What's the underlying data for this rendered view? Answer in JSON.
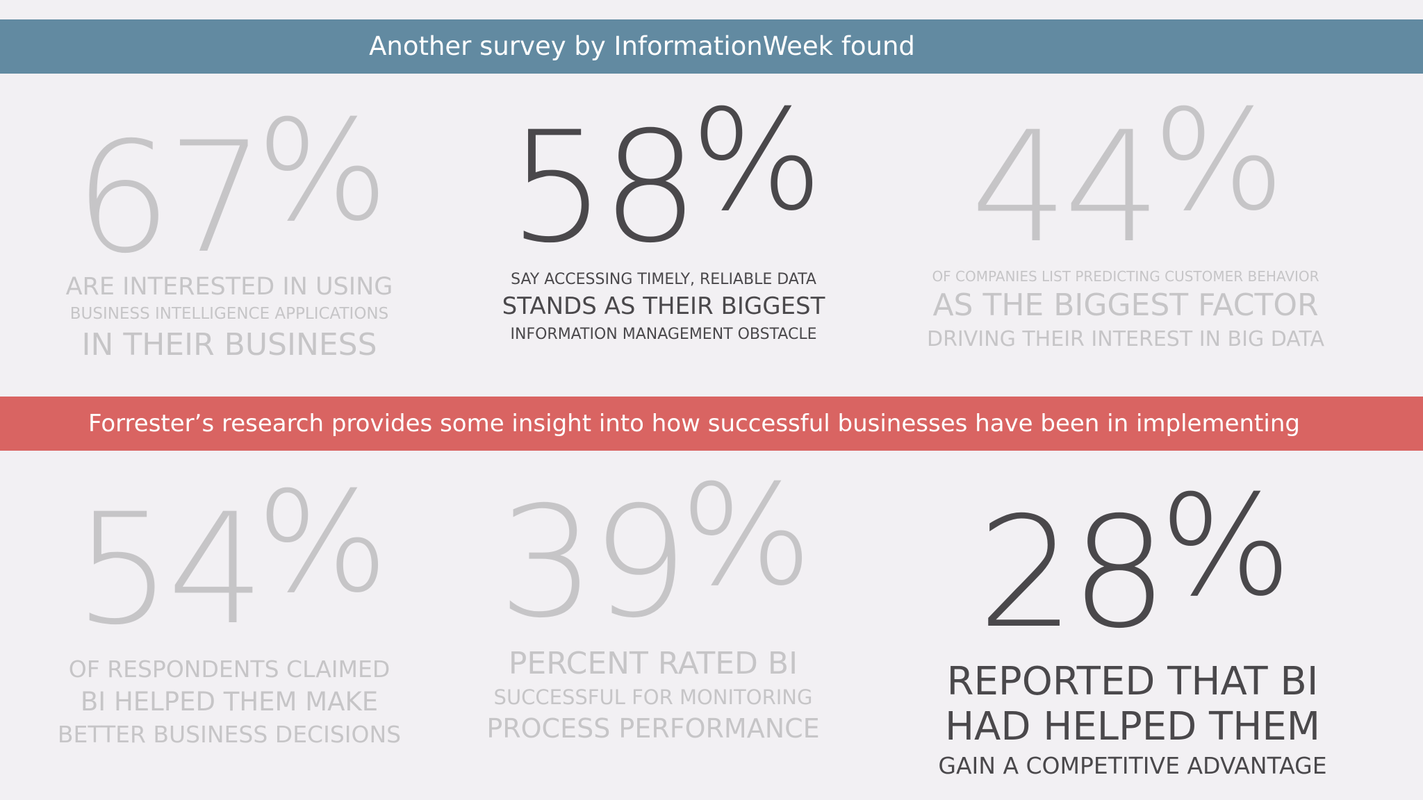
{
  "banners": {
    "top": "Another survey by InformationWeek found",
    "middle": "Forrester’s research provides some insight into how successful businesses have been in implementing"
  },
  "colors": {
    "top_banner": "#628aa1",
    "middle_banner": "#d96462",
    "background": "#f2f0f3",
    "faded_text": "#c6c5c7",
    "dark_text": "#4a484b"
  },
  "stats": [
    {
      "digits": "67",
      "percent": "%",
      "lines": [
        "ARE INTERESTED IN USING",
        "BUSINESS INTELLIGENCE APPLICATIONS",
        "IN THEIR BUSINESS"
      ],
      "emphasis": "faded"
    },
    {
      "digits": "58",
      "percent": "%",
      "lines": [
        "SAY ACCESSING TIMELY, RELIABLE DATA",
        "STANDS AS THEIR BIGGEST",
        "INFORMATION MANAGEMENT OBSTACLE"
      ],
      "emphasis": "dark"
    },
    {
      "digits": "44",
      "percent": "%",
      "lines": [
        "OF COMPANIES LIST PREDICTING CUSTOMER BEHAVIOR",
        "AS THE BIGGEST FACTOR",
        "DRIVING THEIR INTEREST IN BIG DATA"
      ],
      "emphasis": "faded"
    },
    {
      "digits": "54",
      "percent": "%",
      "lines": [
        "OF RESPONDENTS CLAIMED",
        "BI HELPED THEM MAKE",
        "BETTER BUSINESS DECISIONS"
      ],
      "emphasis": "faded"
    },
    {
      "digits": "39",
      "percent": "%",
      "lines": [
        "PERCENT RATED BI",
        "SUCCESSFUL FOR MONITORING",
        "PROCESS PERFORMANCE"
      ],
      "emphasis": "faded"
    },
    {
      "digits": "28",
      "percent": "%",
      "lines": [
        "REPORTED THAT BI",
        "HAD HELPED THEM",
        "GAIN A COMPETITIVE ADVANTAGE"
      ],
      "emphasis": "dark"
    }
  ]
}
